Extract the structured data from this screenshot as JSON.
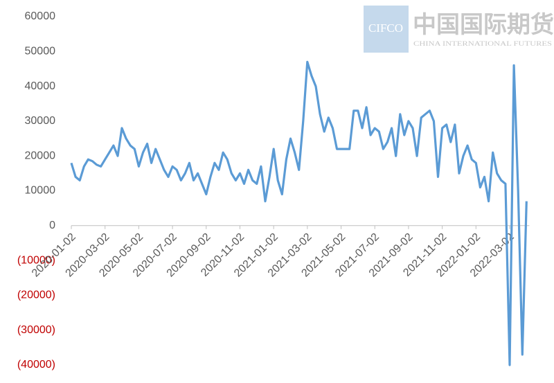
{
  "chart_data": {
    "type": "line",
    "categories": [
      "2020-01-02",
      null,
      null,
      null,
      null,
      null,
      null,
      null,
      "2020-03-02",
      null,
      null,
      null,
      null,
      null,
      null,
      null,
      "2020-05-02",
      null,
      null,
      null,
      null,
      null,
      null,
      null,
      "2020-07-02",
      null,
      null,
      null,
      null,
      null,
      null,
      null,
      "2020-09-02",
      null,
      null,
      null,
      null,
      null,
      null,
      null,
      "2020-11-02",
      null,
      null,
      null,
      null,
      null,
      null,
      null,
      "2021-01-02",
      null,
      null,
      null,
      null,
      null,
      null,
      null,
      "2021-03-02",
      null,
      null,
      null,
      null,
      null,
      null,
      null,
      "2021-05-02",
      null,
      null,
      null,
      null,
      null,
      null,
      null,
      "2021-07-02",
      null,
      null,
      null,
      null,
      null,
      null,
      null,
      "2021-09-02",
      null,
      null,
      null,
      null,
      null,
      null,
      null,
      "2021-11-02",
      null,
      null,
      null,
      null,
      null,
      null,
      null,
      "2022-01-02",
      null,
      null,
      null,
      null,
      null,
      null,
      null,
      "2022-03-02",
      null,
      null,
      null,
      null
    ],
    "values": [
      18000,
      14000,
      13000,
      17000,
      19000,
      18500,
      17500,
      17000,
      19000,
      21000,
      23000,
      20000,
      28000,
      25000,
      23000,
      22000,
      17000,
      21000,
      23500,
      18000,
      22000,
      19000,
      16000,
      14000,
      17000,
      16000,
      13000,
      15000,
      18000,
      13000,
      15000,
      12000,
      9000,
      14000,
      18000,
      16000,
      21000,
      19000,
      15000,
      13000,
      15000,
      12000,
      16000,
      13000,
      12000,
      17000,
      7000,
      14000,
      22000,
      13000,
      9000,
      19000,
      25000,
      21000,
      16000,
      30000,
      47000,
      43000,
      40000,
      32000,
      27000,
      31000,
      28000,
      22000,
      22000,
      22000,
      22000,
      33000,
      33000,
      28000,
      34000,
      26000,
      28000,
      27000,
      22000,
      24000,
      28000,
      20000,
      32000,
      26000,
      30000,
      28000,
      20000,
      31000,
      32000,
      33000,
      30000,
      14000,
      28000,
      29000,
      24000,
      29000,
      15000,
      20000,
      23000,
      19000,
      18000,
      11000,
      14000,
      7000,
      21000,
      15000,
      13000,
      12000,
      -40000,
      46000,
      10000,
      -37000,
      7000
    ],
    "color": "#5b9bd5",
    "ylim": [
      -40000,
      60000
    ],
    "yticks": [
      {
        "value": -40000,
        "label": "(40000)"
      },
      {
        "value": -30000,
        "label": "(30000)"
      },
      {
        "value": -20000,
        "label": "(20000)"
      },
      {
        "value": -10000,
        "label": "(10000)"
      },
      0,
      10000,
      20000,
      30000,
      40000,
      50000,
      60000
    ],
    "negative_label_color": "#c00000",
    "grid": false
  },
  "watermark": {
    "logo": "CIFCO",
    "name": "中国国际期货",
    "subtitle": "CHINA INTERNATIONAL FUTURES"
  }
}
